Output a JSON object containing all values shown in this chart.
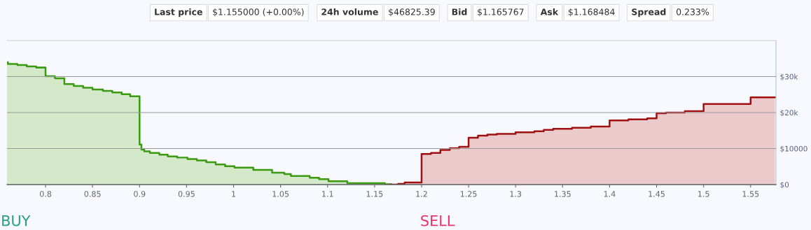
{
  "chart_data": {
    "type": "step",
    "series": [
      {
        "color": "#3a9a10",
        "x": [
          0.759,
          0.76,
          0.77,
          0.78,
          0.79,
          0.8,
          0.81,
          0.82,
          0.83,
          0.84,
          0.85,
          0.861,
          0.871,
          0.881,
          0.89,
          0.9,
          0.902,
          0.905,
          0.911,
          0.921,
          0.93,
          0.94,
          0.951,
          0.961,
          0.971,
          0.981,
          0.991,
          1.001,
          1.021,
          1.041,
          1.054,
          1.061,
          1.081,
          1.091,
          1.101,
          1.121,
          1.161,
          1.168
        ],
        "values": [
          34000,
          33500,
          33200,
          32800,
          32500,
          30100,
          29500,
          27900,
          27400,
          26900,
          26400,
          26000,
          25600,
          25100,
          24500,
          11100,
          9700,
          9200,
          8800,
          8300,
          7800,
          7500,
          7100,
          6700,
          6200,
          5600,
          5100,
          4700,
          4100,
          3300,
          2900,
          2400,
          1900,
          1500,
          900,
          400,
          100,
          0
        ]
      },
      {
        "color": "#a01010",
        "x": [
          1.167,
          1.175,
          1.182,
          1.2,
          1.21,
          1.22,
          1.23,
          1.24,
          1.25,
          1.26,
          1.27,
          1.28,
          1.3,
          1.32,
          1.33,
          1.34,
          1.36,
          1.38,
          1.4,
          1.42,
          1.44,
          1.45,
          1.46,
          1.48,
          1.5,
          1.55,
          1.576
        ],
        "values": [
          0,
          200,
          600,
          8500,
          8800,
          9600,
          10100,
          10500,
          13000,
          13600,
          13900,
          14100,
          14500,
          14800,
          15200,
          15500,
          15800,
          16100,
          17800,
          18100,
          18400,
          19800,
          20000,
          20400,
          22400,
          24200,
          24200
        ]
      }
    ],
    "xlim": [
      0.759,
      1.577
    ],
    "xticks": [
      0.8,
      0.85,
      0.9,
      0.95,
      1,
      1.05,
      1.1,
      1.15,
      1.2,
      1.25,
      1.3,
      1.35,
      1.4,
      1.45,
      1.5,
      1.55
    ],
    "ylim": [
      0,
      40000
    ],
    "yticks": [
      {
        "value": 0,
        "label": "$0"
      },
      {
        "value": 10000,
        "label": "$10000"
      },
      {
        "value": 20000,
        "label": "$20k"
      },
      {
        "value": 30000,
        "label": "$30k"
      }
    ],
    "grid": "y",
    "legend": false,
    "annotations": [
      "Last price",
      "$1.155000 (+0.00%)",
      "24h volume",
      "$46825.39",
      "Bid",
      "$1.165767",
      "Ask",
      "$1.168484",
      "Spread",
      "0.233%",
      "BUY",
      "SELL"
    ]
  }
}
